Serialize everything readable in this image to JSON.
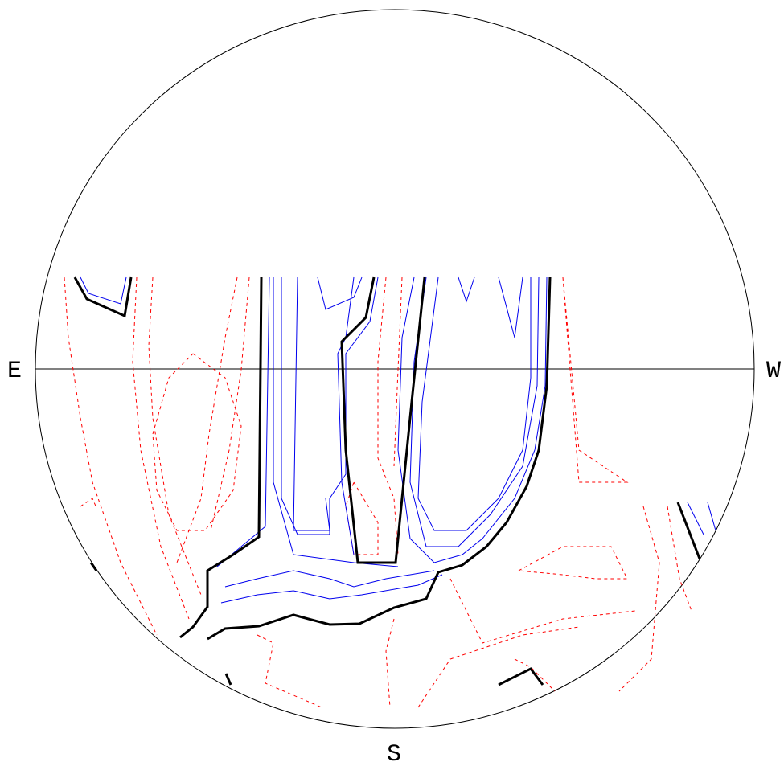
{
  "labels": {
    "east": "E",
    "west": "W",
    "south": "S"
  }
}
